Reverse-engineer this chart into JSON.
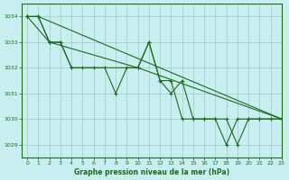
{
  "title": "Graphe pression niveau de la mer (hPa)",
  "background_color": "#c8eef0",
  "grid_color": "#a0c8c8",
  "line_color": "#1a6b1a",
  "xlim": [
    -0.5,
    23
  ],
  "ylim": [
    1028.5,
    1034.5
  ],
  "yticks": [
    1029,
    1030,
    1031,
    1032,
    1033,
    1034
  ],
  "xticks": [
    0,
    1,
    2,
    3,
    4,
    5,
    6,
    7,
    8,
    9,
    10,
    11,
    12,
    13,
    14,
    15,
    16,
    17,
    18,
    19,
    20,
    21,
    22,
    23
  ],
  "series": [
    {
      "x": [
        0,
        1,
        23
      ],
      "y": [
        1034,
        1034,
        1030
      ]
    },
    {
      "x": [
        0,
        1,
        2,
        10,
        23
      ],
      "y": [
        1034,
        1034,
        1033,
        1032,
        1030
      ]
    },
    {
      "x": [
        0,
        1,
        2,
        3,
        4,
        5,
        6,
        7,
        8,
        9,
        10,
        11,
        12,
        13,
        14,
        15,
        16,
        17,
        18,
        19,
        20,
        21,
        22,
        23
      ],
      "y": [
        1034,
        1034,
        1033,
        1033,
        1032,
        1032,
        1032,
        1032,
        1031,
        1032,
        1032,
        1033,
        1031.5,
        1031,
        1031.5,
        1030,
        1030,
        1030,
        1030,
        1029,
        1030,
        1030,
        1030,
        1030
      ]
    },
    {
      "x": [
        0,
        2,
        3,
        4,
        10,
        11,
        12,
        13,
        14,
        15,
        16,
        17,
        18,
        19,
        20,
        21,
        22,
        23
      ],
      "y": [
        1034,
        1033,
        1033,
        1032,
        1032,
        1033,
        1031.5,
        1031.5,
        1030,
        1030,
        1030,
        1030,
        1029,
        1030,
        1030,
        1030,
        1030,
        1030
      ]
    }
  ]
}
